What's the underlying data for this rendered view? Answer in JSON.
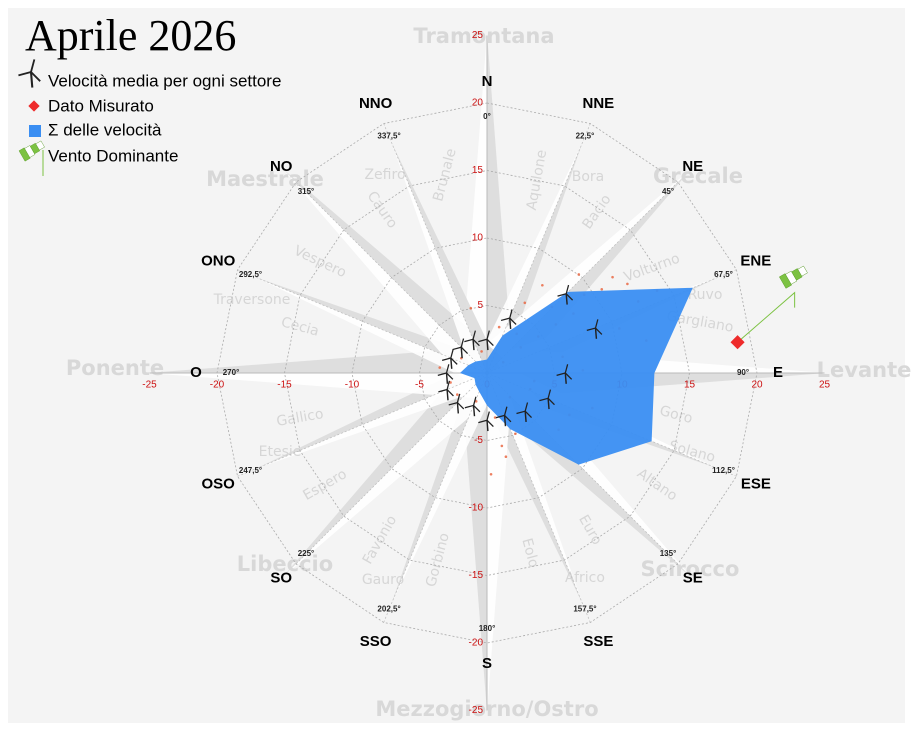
{
  "chart_data": {
    "type": "windrose",
    "title": "Aprile 2026",
    "xlim": [
      -25,
      25
    ],
    "ylim": [
      -25,
      25
    ],
    "xticks": [
      -25,
      -20,
      -15,
      -10,
      -5,
      0,
      5,
      10,
      15,
      20,
      25
    ],
    "yticks": [
      -25,
      -20,
      -15,
      -10,
      -5,
      5,
      10,
      15,
      20,
      25
    ],
    "tick_color": "#cc1111",
    "rings": [
      5,
      10,
      15,
      20
    ],
    "sector_names": [
      "N",
      "NNE",
      "NE",
      "ENE",
      "E",
      "ESE",
      "SE",
      "SSE",
      "S",
      "SSO",
      "SO",
      "OSO",
      "O",
      "ONO",
      "NO",
      "NNO"
    ],
    "directions": [
      {
        "value": 0,
        "label": "0°"
      },
      {
        "value": 22.5,
        "label": "22,5°"
      },
      {
        "value": 45,
        "label": "45°"
      },
      {
        "value": 67.5,
        "label": "67,5°"
      },
      {
        "value": 90,
        "label": "90°"
      },
      {
        "value": 112.5,
        "label": "112,5°"
      },
      {
        "value": 135,
        "label": "135°"
      },
      {
        "value": 157.5,
        "label": "157,5°"
      },
      {
        "value": 180,
        "label": "180°"
      },
      {
        "value": 202.5,
        "label": "202,5°"
      },
      {
        "value": 225,
        "label": "225°"
      },
      {
        "value": 247.5,
        "label": "247,5°"
      },
      {
        "value": 270,
        "label": "270°"
      },
      {
        "value": 292.5,
        "label": "292,5°"
      },
      {
        "value": 315,
        "label": "315°"
      },
      {
        "value": 337.5,
        "label": "337,5°"
      }
    ],
    "main_winds": [
      "Tramontana",
      "Grecale",
      "Levante",
      "Scirocco",
      "Mezzogiorno/Ostro",
      "Libeccio",
      "Ponente",
      "Maestrale"
    ],
    "minor_winds": [
      "Aquilone",
      "Bora",
      "Bacio",
      "Volturno",
      "Ruvo",
      "Gargliano",
      "Goro",
      "Solano",
      "Altano",
      "Euro",
      "Africo",
      "Eolo",
      "Gorbino",
      "Gauro",
      "Favonio",
      "Espero",
      "Etesie",
      "Gallico",
      "Cecia",
      "Traversone",
      "Vespero",
      "Cauro",
      "Zefiro",
      "Brunale"
    ],
    "series": [
      {
        "name": "Velocità media per ogni settore",
        "color": "#333333",
        "values": [
          2.5,
          4.4,
          8.3,
          8.7,
          5.8,
          4.9,
          4,
          3.4,
          3.5,
          2.6,
          3.1,
          3.2,
          3,
          2.9,
          2.7,
          2.7
        ]
      },
      {
        "name": "Σ delle velocità",
        "color": "#3a8ef2",
        "values": [
          1,
          3,
          8.5,
          16.5,
          12.4,
          13.2,
          9.6,
          4.5,
          2.4,
          1.5,
          1.2,
          1,
          2,
          1.5,
          1.2,
          1
        ]
      }
    ],
    "measured": {
      "name": "Dato Misurato",
      "color": "#ee2b2b",
      "direction": 83,
      "value": 18.7
    },
    "dominant": {
      "name": "Vento Dominante",
      "color": "#7cc242",
      "direction": 73,
      "value": 22.9
    },
    "scatter": {
      "color": "#e8603a",
      "x": [
        1.2,
        2.5,
        3.8,
        5.1,
        6.4,
        7.2,
        8.5,
        9.3,
        10.4,
        11.2,
        3.2,
        4.6,
        6.1,
        7.8,
        2.1,
        1.4,
        0.6,
        -0.8,
        -1.9,
        -2.7,
        -3.5,
        0.9,
        2.8,
        4.1,
        5.6,
        1.7,
        -1.2,
        0.3,
        3.5,
        9.8,
        11.8,
        12.6,
        7.1,
        5.3,
        2.2,
        -0.4,
        1.1,
        -2.2,
        4.8,
        6.8
      ],
      "y": [
        0.8,
        1.9,
        2.7,
        3.6,
        4.4,
        5.8,
        6.2,
        7.1,
        6.6,
        5.3,
        -1.2,
        -2.3,
        -3.1,
        -2.6,
        -4.5,
        -6.2,
        -3.3,
        -2.1,
        1.1,
        -0.7,
        0.4,
        3.4,
        5.2,
        6.5,
        1.2,
        -1.8,
        4.8,
        -7.5,
        -0.6,
        3.3,
        2.4,
        6.1,
        0.2,
        -4.2,
        2.9,
        1.6,
        -5.4,
        -1.6,
        4.9,
        7.3
      ]
    }
  }
}
